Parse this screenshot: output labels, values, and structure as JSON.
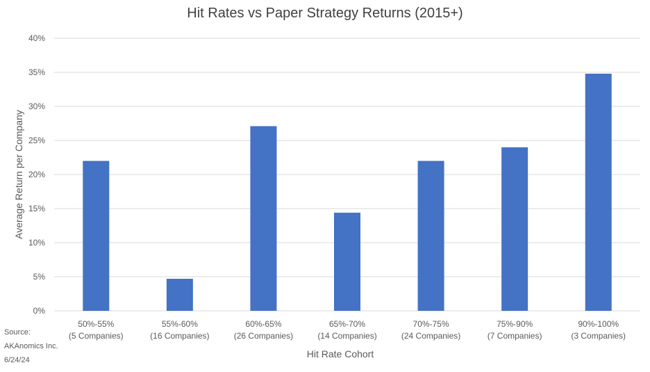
{
  "chart_data": {
    "type": "bar",
    "title": "Hit Rates vs Paper Strategy Returns (2015+)",
    "xlabel": "Hit Rate Cohort",
    "ylabel": "Average Return per Company",
    "categories": [
      [
        "50%-55%",
        "(5 Companies)"
      ],
      [
        "55%-60%",
        "(16 Companies)"
      ],
      [
        "60%-65%",
        "(26 Companies)"
      ],
      [
        "65%-70%",
        "(14 Companies)"
      ],
      [
        "70%-75%",
        "(24 Companies)"
      ],
      [
        "75%-90%",
        "(7 Companies)"
      ],
      [
        "90%-100%",
        "(3 Companies)"
      ]
    ],
    "values": [
      22.0,
      4.7,
      27.1,
      14.4,
      22.0,
      24.0,
      34.8
    ],
    "ylim": [
      0,
      40
    ],
    "yticks": [
      0,
      5,
      10,
      15,
      20,
      25,
      30,
      35,
      40
    ],
    "ytick_labels": [
      "0%",
      "5%",
      "10%",
      "15%",
      "20%",
      "25%",
      "30%",
      "35%",
      "40%"
    ],
    "grid": true,
    "bar_color": "#4472C4",
    "grid_color": "#D9D9D9"
  },
  "source": {
    "line1": "Source:",
    "line2": "AKAnomics Inc.",
    "line3": "6/24/24"
  }
}
